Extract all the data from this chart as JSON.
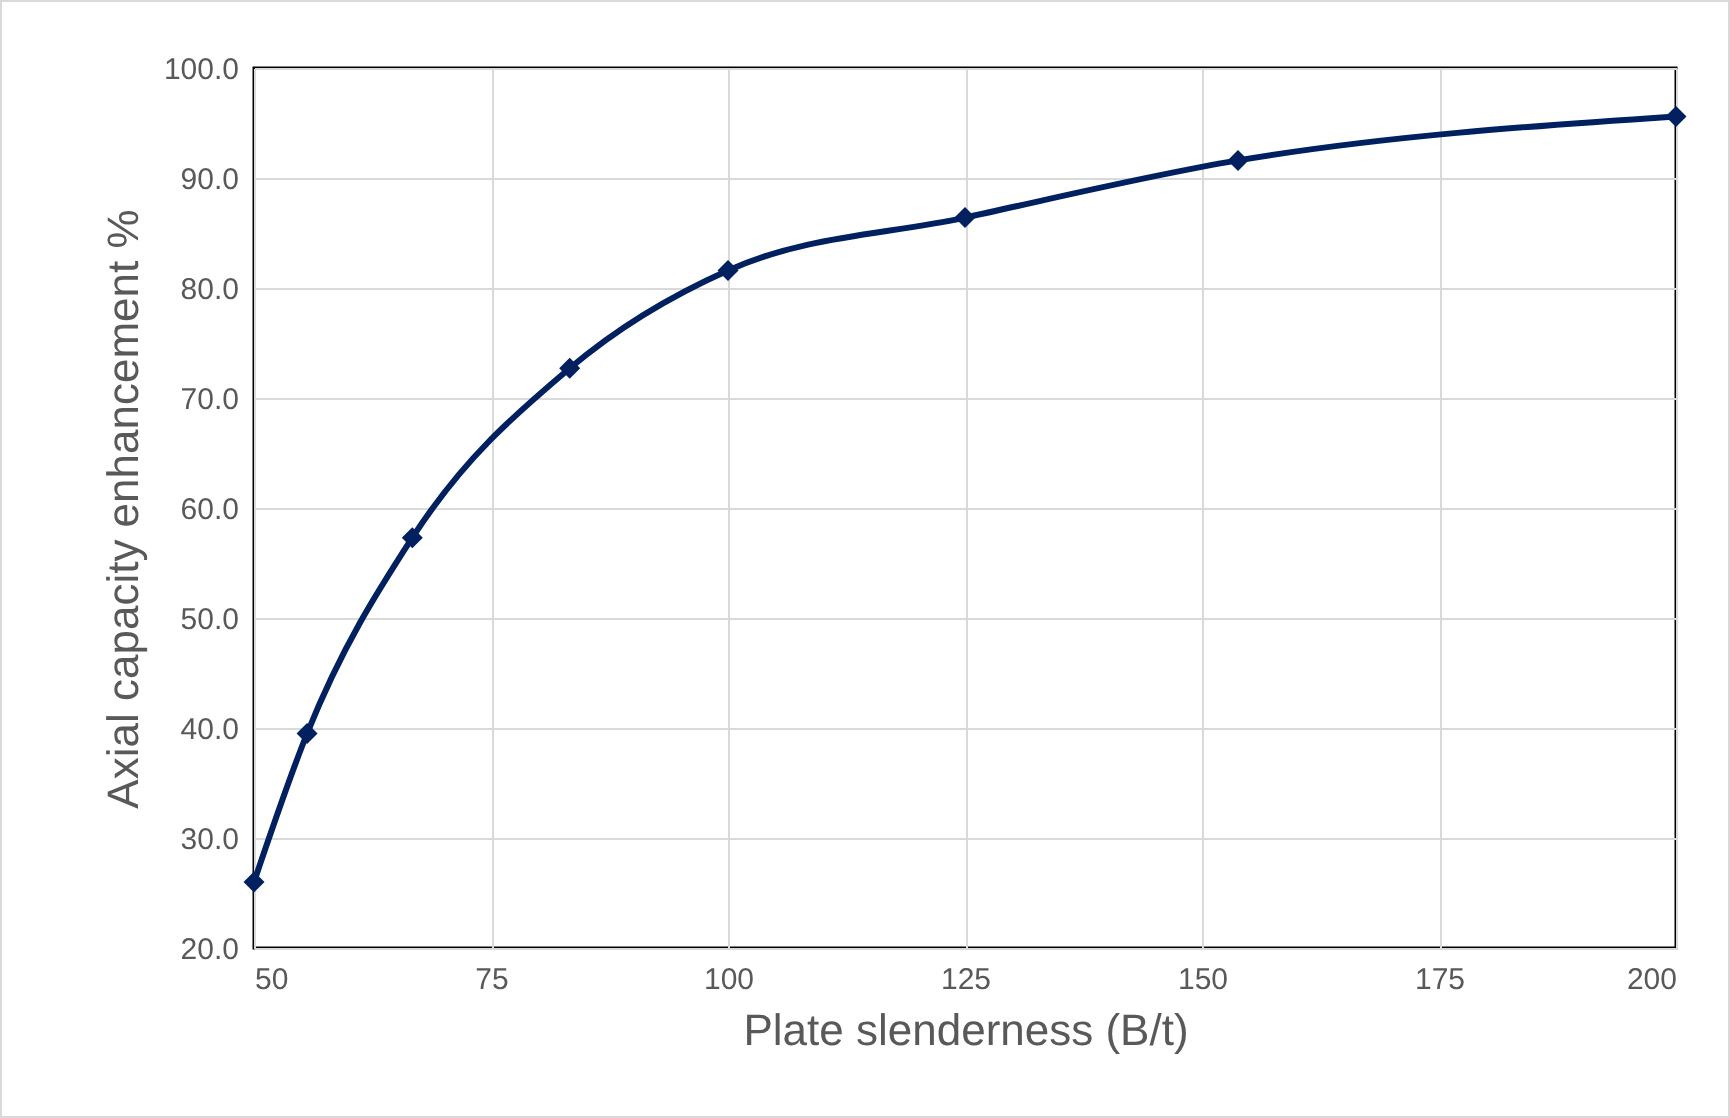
{
  "chart_data": {
    "type": "line",
    "xlabel": "Plate slenderness (B/t)",
    "ylabel": "Axial capacity enhancement %",
    "x": [
      50,
      55.6,
      66.7,
      83.3,
      100,
      125,
      153.8,
      200
    ],
    "series": [
      {
        "color": "#002060",
        "values": [
          26.0,
          39.5,
          57.3,
          72.7,
          81.6,
          86.4,
          91.6,
          95.6
        ]
      }
    ],
    "xlim": [
      50,
      200
    ],
    "xticks": [
      50,
      75,
      100,
      125,
      150,
      175,
      200
    ],
    "ylim": [
      20,
      100
    ],
    "yticks": [
      {
        "value": 20,
        "label": "20.0"
      },
      {
        "value": 30,
        "label": "30.0"
      },
      {
        "value": 40,
        "label": "40.0"
      },
      {
        "value": 50,
        "label": "50.0"
      },
      {
        "value": 60,
        "label": "60.0"
      },
      {
        "value": 70,
        "label": "70.0"
      },
      {
        "value": 80,
        "label": "80.0"
      },
      {
        "value": 90,
        "label": "90.0"
      },
      {
        "value": 100,
        "label": "100.0"
      }
    ],
    "grid": true,
    "marker": "diamond",
    "line_style": "solid"
  }
}
